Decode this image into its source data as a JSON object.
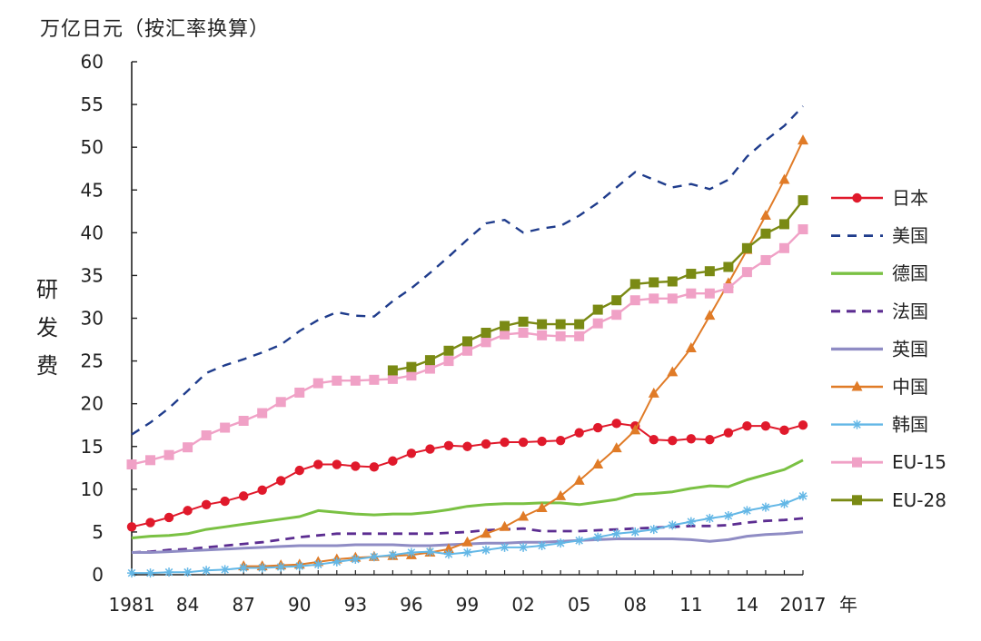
{
  "chart_data": {
    "type": "line",
    "title": "",
    "unit_label": "万亿日元（按汇率换算）",
    "ylabel": "研发费",
    "xlabel": "年",
    "ylim": [
      0,
      60
    ],
    "xlim": [
      1981,
      2017
    ],
    "y_ticks": [
      0,
      5,
      10,
      15,
      20,
      25,
      30,
      35,
      40,
      45,
      50,
      55,
      60
    ],
    "x_tick_positions": [
      1981,
      1984,
      1987,
      1990,
      1993,
      1996,
      1999,
      2002,
      2005,
      2008,
      2011,
      2014,
      2017
    ],
    "x_tick_labels": [
      "1981",
      "84",
      "87",
      "90",
      "93",
      "96",
      "99",
      "02",
      "05",
      "08",
      "11",
      "14",
      "2017"
    ],
    "legend_position": "right",
    "series": [
      {
        "name": "日本",
        "color": "#e0192b",
        "dash": "",
        "marker": "circle",
        "width": 2,
        "x": [
          1981,
          1982,
          1983,
          1984,
          1985,
          1986,
          1987,
          1988,
          1989,
          1990,
          1991,
          1992,
          1993,
          1994,
          1995,
          1996,
          1997,
          1998,
          1999,
          2000,
          2001,
          2002,
          2003,
          2004,
          2005,
          2006,
          2007,
          2008,
          2009,
          2010,
          2011,
          2012,
          2013,
          2014,
          2015,
          2016,
          2017
        ],
        "values": [
          5.6,
          6.1,
          6.7,
          7.5,
          8.2,
          8.6,
          9.2,
          9.9,
          11.0,
          12.2,
          12.9,
          12.9,
          12.7,
          12.6,
          13.3,
          14.2,
          14.7,
          15.1,
          15.0,
          15.3,
          15.5,
          15.5,
          15.6,
          15.7,
          16.6,
          17.2,
          17.7,
          17.4,
          15.8,
          15.7,
          15.9,
          15.8,
          16.6,
          17.4,
          17.4,
          16.9,
          17.5
        ]
      },
      {
        "name": "美国",
        "color": "#1f3c8c",
        "dash": "10,8",
        "marker": "none",
        "width": 2.4,
        "x": [
          1981,
          1982,
          1983,
          1984,
          1985,
          1986,
          1987,
          1988,
          1989,
          1990,
          1991,
          1992,
          1993,
          1994,
          1995,
          1996,
          1997,
          1998,
          1999,
          2000,
          2001,
          2002,
          2003,
          2004,
          2005,
          2006,
          2007,
          2008,
          2009,
          2010,
          2011,
          2012,
          2013,
          2014,
          2015,
          2016,
          2017
        ],
        "values": [
          16.4,
          17.8,
          19.5,
          21.5,
          23.6,
          24.5,
          25.2,
          26.0,
          26.9,
          28.5,
          29.8,
          30.7,
          30.3,
          30.2,
          32.0,
          33.5,
          35.3,
          37.2,
          39.2,
          41.1,
          41.5,
          40.0,
          40.5,
          40.8,
          42.0,
          43.5,
          45.3,
          47.1,
          46.2,
          45.3,
          45.7,
          45.1,
          46.2,
          48.9,
          50.8,
          52.5,
          54.8
        ]
      },
      {
        "name": "德国",
        "color": "#7ac143",
        "dash": "",
        "marker": "none",
        "width": 3,
        "x": [
          1981,
          1982,
          1983,
          1984,
          1985,
          1986,
          1987,
          1988,
          1989,
          1990,
          1991,
          1992,
          1993,
          1994,
          1995,
          1996,
          1997,
          1998,
          1999,
          2000,
          2001,
          2002,
          2003,
          2004,
          2005,
          2006,
          2007,
          2008,
          2009,
          2010,
          2011,
          2012,
          2013,
          2014,
          2015,
          2016,
          2017
        ],
        "values": [
          4.3,
          4.5,
          4.6,
          4.8,
          5.3,
          5.6,
          5.9,
          6.2,
          6.5,
          6.8,
          7.5,
          7.3,
          7.1,
          7.0,
          7.1,
          7.1,
          7.3,
          7.6,
          8.0,
          8.2,
          8.3,
          8.3,
          8.4,
          8.4,
          8.2,
          8.5,
          8.8,
          9.4,
          9.5,
          9.7,
          10.1,
          10.4,
          10.3,
          11.1,
          11.7,
          12.3,
          13.4
        ]
      },
      {
        "name": "法国",
        "color": "#5c2d91",
        "dash": "10,7",
        "marker": "none",
        "width": 2.8,
        "x": [
          1981,
          1982,
          1983,
          1984,
          1985,
          1986,
          1987,
          1988,
          1989,
          1990,
          1991,
          1992,
          1993,
          1994,
          1995,
          1996,
          1997,
          1998,
          1999,
          2000,
          2001,
          2002,
          2003,
          2004,
          2005,
          2006,
          2007,
          2008,
          2009,
          2010,
          2011,
          2012,
          2013,
          2014,
          2015,
          2016,
          2017
        ],
        "values": [
          2.6,
          2.7,
          2.9,
          3.0,
          3.2,
          3.4,
          3.6,
          3.8,
          4.1,
          4.4,
          4.6,
          4.8,
          4.8,
          4.8,
          4.8,
          4.8,
          4.8,
          4.9,
          5.0,
          5.2,
          5.3,
          5.4,
          5.1,
          5.1,
          5.1,
          5.2,
          5.3,
          5.4,
          5.5,
          5.6,
          5.7,
          5.7,
          5.8,
          6.1,
          6.3,
          6.4,
          6.6
        ]
      },
      {
        "name": "英国",
        "color": "#8f8cc4",
        "dash": "",
        "marker": "none",
        "width": 3,
        "x": [
          1981,
          1982,
          1983,
          1984,
          1985,
          1986,
          1987,
          1988,
          1989,
          1990,
          1991,
          1992,
          1993,
          1994,
          1995,
          1996,
          1997,
          1998,
          1999,
          2000,
          2001,
          2002,
          2003,
          2004,
          2005,
          2006,
          2007,
          2008,
          2009,
          2010,
          2011,
          2012,
          2013,
          2014,
          2015,
          2016,
          2017
        ],
        "values": [
          2.6,
          2.6,
          2.7,
          2.8,
          2.9,
          3.0,
          3.1,
          3.2,
          3.3,
          3.4,
          3.4,
          3.4,
          3.5,
          3.5,
          3.5,
          3.4,
          3.4,
          3.5,
          3.6,
          3.7,
          3.7,
          3.8,
          3.8,
          3.9,
          4.0,
          4.1,
          4.2,
          4.2,
          4.2,
          4.2,
          4.1,
          3.9,
          4.1,
          4.5,
          4.7,
          4.8,
          5.0
        ]
      },
      {
        "name": "中国",
        "color": "#e07b27",
        "dash": "",
        "marker": "triangle",
        "width": 2,
        "x": [
          1987,
          1988,
          1989,
          1990,
          1991,
          1992,
          1993,
          1994,
          1995,
          1996,
          1997,
          1998,
          1999,
          2000,
          2001,
          2002,
          2003,
          2004,
          2005,
          2006,
          2007,
          2008,
          2009,
          2010,
          2011,
          2012,
          2013,
          2014,
          2015,
          2016,
          2017
        ],
        "values": [
          1.0,
          1.0,
          1.1,
          1.2,
          1.5,
          1.8,
          2.0,
          2.1,
          2.2,
          2.3,
          2.6,
          3.0,
          3.8,
          4.8,
          5.6,
          6.8,
          7.8,
          9.2,
          11.0,
          12.9,
          14.8,
          16.9,
          21.2,
          23.7,
          26.5,
          30.3,
          34.1,
          38.0,
          42.0,
          46.2,
          50.8
        ]
      },
      {
        "name": "韩国",
        "color": "#63b7e6",
        "dash": "",
        "marker": "star",
        "width": 2,
        "x": [
          1981,
          1982,
          1983,
          1984,
          1985,
          1986,
          1987,
          1988,
          1989,
          1990,
          1991,
          1992,
          1993,
          1994,
          1995,
          1996,
          1997,
          1998,
          1999,
          2000,
          2001,
          2002,
          2003,
          2004,
          2005,
          2006,
          2007,
          2008,
          2009,
          2010,
          2011,
          2012,
          2013,
          2014,
          2015,
          2016,
          2017
        ],
        "values": [
          0.2,
          0.2,
          0.3,
          0.3,
          0.5,
          0.6,
          0.8,
          0.8,
          0.9,
          1.0,
          1.2,
          1.5,
          1.8,
          2.1,
          2.3,
          2.6,
          2.7,
          2.4,
          2.6,
          2.9,
          3.2,
          3.2,
          3.4,
          3.7,
          4.0,
          4.4,
          4.8,
          5.0,
          5.3,
          5.8,
          6.2,
          6.6,
          6.9,
          7.5,
          7.9,
          8.3,
          9.2
        ]
      },
      {
        "name": "EU-15",
        "color": "#f0a1c6",
        "dash": "",
        "marker": "square",
        "width": 2.4,
        "x": [
          1981,
          1982,
          1983,
          1984,
          1985,
          1986,
          1987,
          1988,
          1989,
          1990,
          1991,
          1992,
          1993,
          1994,
          1995,
          1996,
          1997,
          1998,
          1999,
          2000,
          2001,
          2002,
          2003,
          2004,
          2005,
          2006,
          2007,
          2008,
          2009,
          2010,
          2011,
          2012,
          2013,
          2014,
          2015,
          2016,
          2017
        ],
        "values": [
          12.9,
          13.4,
          14.0,
          14.9,
          16.3,
          17.2,
          18.0,
          18.9,
          20.2,
          21.3,
          22.4,
          22.7,
          22.7,
          22.8,
          22.9,
          23.3,
          24.1,
          25.0,
          26.2,
          27.2,
          28.1,
          28.3,
          28.0,
          27.9,
          27.9,
          29.4,
          30.4,
          32.1,
          32.3,
          32.3,
          32.9,
          32.9,
          33.5,
          35.4,
          36.8,
          38.2,
          40.4
        ]
      },
      {
        "name": "EU-28",
        "color": "#7a8a14",
        "dash": "",
        "marker": "square",
        "width": 2.4,
        "x": [
          1995,
          1996,
          1997,
          1998,
          1999,
          2000,
          2001,
          2002,
          2003,
          2004,
          2005,
          2006,
          2007,
          2008,
          2009,
          2010,
          2011,
          2012,
          2013,
          2014,
          2015,
          2016,
          2017
        ],
        "values": [
          23.9,
          24.3,
          25.1,
          26.2,
          27.3,
          28.3,
          29.1,
          29.6,
          29.3,
          29.3,
          29.3,
          31.0,
          32.1,
          34.0,
          34.2,
          34.3,
          35.2,
          35.5,
          36.0,
          38.2,
          39.9,
          41.0,
          43.8
        ]
      }
    ]
  }
}
